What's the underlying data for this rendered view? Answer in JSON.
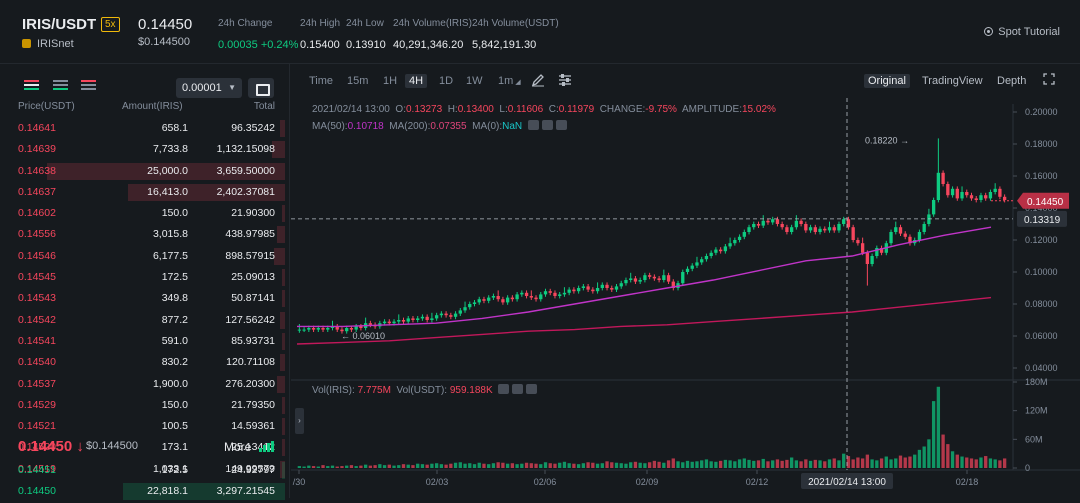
{
  "header": {
    "pair": "IRIS/USDT",
    "leverage": "5x",
    "name": "IRISnet",
    "last_price": "0.14450",
    "last_price_usd": "$0.144500",
    "stats": [
      {
        "label": "24h Change",
        "value": "0.00035 +0.24%",
        "color": "green"
      },
      {
        "label": "24h High",
        "value": "0.15400",
        "color": "default"
      },
      {
        "label": "24h Low",
        "value": "0.13910",
        "color": "default"
      },
      {
        "label": "24h Volume(IRIS)",
        "value": "40,291,346.20",
        "color": "default"
      },
      {
        "label": "24h Volume(USDT)",
        "value": "5,842,191.30",
        "color": "default"
      }
    ],
    "tutorial": "Spot Tutorial"
  },
  "orderbook": {
    "precision": "0.00001",
    "headers": {
      "price": "Price(USDT)",
      "amount": "Amount(IRIS)",
      "total": "Total"
    },
    "asks": [
      {
        "price": "0.14641",
        "amount": "658.1",
        "total": "96.35242",
        "depth": 0.02
      },
      {
        "price": "0.14639",
        "amount": "7,733.8",
        "total": "1,132.15098",
        "depth": 0.05
      },
      {
        "price": "0.14638",
        "amount": "25,000.0",
        "total": "3,659.50000",
        "depth": 0.88
      },
      {
        "price": "0.14637",
        "amount": "16,413.0",
        "total": "2,402.37081",
        "depth": 0.58
      },
      {
        "price": "0.14602",
        "amount": "150.0",
        "total": "21.90300",
        "depth": 0.01
      },
      {
        "price": "0.14556",
        "amount": "3,015.8",
        "total": "438.97985",
        "depth": 0.03
      },
      {
        "price": "0.14546",
        "amount": "6,177.5",
        "total": "898.57915",
        "depth": 0.04
      },
      {
        "price": "0.14545",
        "amount": "172.5",
        "total": "25.09013",
        "depth": 0.01
      },
      {
        "price": "0.14543",
        "amount": "349.8",
        "total": "50.87141",
        "depth": 0.01
      },
      {
        "price": "0.14542",
        "amount": "877.2",
        "total": "127.56242",
        "depth": 0.02
      },
      {
        "price": "0.14541",
        "amount": "591.0",
        "total": "85.93731",
        "depth": 0.01
      },
      {
        "price": "0.14540",
        "amount": "830.2",
        "total": "120.71108",
        "depth": 0.02
      },
      {
        "price": "0.14537",
        "amount": "1,900.0",
        "total": "276.20300",
        "depth": 0.03
      },
      {
        "price": "0.14529",
        "amount": "150.0",
        "total": "21.79350",
        "depth": 0.01
      },
      {
        "price": "0.14521",
        "amount": "100.5",
        "total": "14.59361",
        "depth": 0.01
      },
      {
        "price": "0.14520",
        "amount": "173.1",
        "total": "25.13412",
        "depth": 0.01
      },
      {
        "price": "0.14519",
        "amount": "1,033.1",
        "total": "149.99579",
        "depth": 0.02
      }
    ],
    "mid_price": "0.14450 ↓",
    "mid_price_usd": "$0.144500",
    "more_label": "More",
    "bids": [
      {
        "price": "0.14451",
        "amount": "172.5",
        "total": "24.92797",
        "depth": 0.01
      },
      {
        "price": "0.14450",
        "amount": "22,818.1",
        "total": "3,297.21545",
        "depth": 0.6
      }
    ]
  },
  "toolbar": {
    "timeframes": [
      "Time",
      "15m",
      "1H",
      "4H",
      "1D",
      "1W",
      "1m"
    ],
    "active_timeframe": "4H",
    "views": [
      "Original",
      "TradingView",
      "Depth"
    ],
    "active_view": "Original"
  },
  "ohlc": {
    "date": "2021/02/14 13:00",
    "o_label": "O:",
    "o": "0.13273",
    "h_label": "H:",
    "h": "0.13400",
    "l_label": "L:",
    "l": "0.11606",
    "c_label": "C:",
    "c": "0.11979",
    "change_label": "CHANGE:",
    "change": "-9.75%",
    "amp_label": "AMPLITUDE:",
    "amplitude": "15.02%",
    "ma50_label": "MA(50):",
    "ma50": "0.10718",
    "ma200_label": "MA(200):",
    "ma200": "0.07355",
    "ma0_label": "MA(0):",
    "ma0": "NaN"
  },
  "volume_legend": {
    "vol_iris_label": "Vol(IRIS):",
    "vol_iris": "7.775M",
    "vol_usdt_label": "Vol(USDT):",
    "vol_usdt": "959.188K"
  },
  "chart_data": {
    "type": "candlestick",
    "price_axis_ticks": [
      "0.20000",
      "0.18000",
      "0.16000",
      "0.14000",
      "0.12000",
      "0.10000",
      "0.08000",
      "0.06000",
      "0.04000"
    ],
    "price_ylim": [
      0.035,
      0.205
    ],
    "volume_axis_ticks": [
      "180M",
      "120M",
      "60M",
      "0"
    ],
    "volume_ylim": [
      0,
      180
    ],
    "x_ticks": [
      "/30",
      "02/03",
      "02/06",
      "02/09",
      "02/12",
      "2021/02/14 13:00",
      "02/18"
    ],
    "current_price_label": "0.14450",
    "crosshair_price_label": "0.13319",
    "annotations": [
      {
        "text": "0.18220 →"
      },
      {
        "text": "← 0.06010"
      }
    ],
    "series": [
      {
        "name": "MA(50)",
        "color": "#c034c8",
        "values": [
          0.066,
          0.066,
          0.067,
          0.068,
          0.071,
          0.075,
          0.08,
          0.085,
          0.09,
          0.095,
          0.101,
          0.107,
          0.11,
          0.117,
          0.123,
          0.128
        ]
      },
      {
        "name": "MA(200)",
        "color": "#c2185b",
        "values": [
          0.055,
          0.056,
          0.057,
          0.059,
          0.061,
          0.063,
          0.064,
          0.066,
          0.067,
          0.069,
          0.071,
          0.073,
          0.075,
          0.078,
          0.081,
          0.084
        ]
      }
    ],
    "candle_closes": [
      0.064,
      0.064,
      0.065,
      0.064,
      0.065,
      0.064,
      0.065,
      0.066,
      0.064,
      0.063,
      0.065,
      0.064,
      0.066,
      0.065,
      0.068,
      0.067,
      0.066,
      0.068,
      0.069,
      0.068,
      0.069,
      0.07,
      0.069,
      0.071,
      0.07,
      0.071,
      0.072,
      0.07,
      0.071,
      0.073,
      0.074,
      0.073,
      0.072,
      0.074,
      0.076,
      0.078,
      0.08,
      0.081,
      0.083,
      0.082,
      0.084,
      0.085,
      0.083,
      0.081,
      0.084,
      0.083,
      0.086,
      0.087,
      0.085,
      0.084,
      0.083,
      0.086,
      0.088,
      0.087,
      0.085,
      0.086,
      0.087,
      0.089,
      0.088,
      0.09,
      0.091,
      0.089,
      0.088,
      0.09,
      0.092,
      0.09,
      0.089,
      0.091,
      0.093,
      0.095,
      0.096,
      0.094,
      0.095,
      0.098,
      0.097,
      0.096,
      0.095,
      0.098,
      0.094,
      0.09,
      0.093,
      0.1,
      0.102,
      0.104,
      0.106,
      0.108,
      0.11,
      0.112,
      0.114,
      0.113,
      0.116,
      0.118,
      0.12,
      0.122,
      0.125,
      0.128,
      0.13,
      0.129,
      0.132,
      0.131,
      0.133,
      0.13,
      0.128,
      0.125,
      0.128,
      0.132,
      0.13,
      0.126,
      0.128,
      0.125,
      0.127,
      0.126,
      0.128,
      0.126,
      0.13,
      0.133,
      0.128,
      0.12,
      0.118,
      0.112,
      0.105,
      0.11,
      0.115,
      0.112,
      0.118,
      0.125,
      0.128,
      0.124,
      0.122,
      0.118,
      0.12,
      0.125,
      0.13,
      0.136,
      0.145,
      0.162,
      0.155,
      0.148,
      0.152,
      0.146,
      0.15,
      0.148,
      0.146,
      0.145,
      0.148,
      0.146,
      0.15,
      0.152,
      0.147,
      0.145
    ],
    "volumes": [
      4,
      3,
      5,
      4,
      3,
      6,
      4,
      5,
      3,
      4,
      5,
      6,
      4,
      5,
      7,
      5,
      6,
      8,
      6,
      7,
      5,
      6,
      8,
      7,
      6,
      9,
      8,
      7,
      9,
      10,
      8,
      7,
      9,
      11,
      12,
      9,
      10,
      8,
      11,
      9,
      8,
      10,
      12,
      11,
      9,
      10,
      8,
      9,
      11,
      10,
      9,
      8,
      12,
      10,
      9,
      11,
      13,
      10,
      9,
      8,
      10,
      12,
      11,
      9,
      10,
      14,
      12,
      11,
      10,
      9,
      12,
      13,
      11,
      10,
      12,
      15,
      13,
      11,
      16,
      20,
      14,
      12,
      15,
      13,
      14,
      16,
      18,
      14,
      13,
      15,
      17,
      16,
      14,
      18,
      20,
      17,
      15,
      16,
      19,
      14,
      16,
      18,
      15,
      17,
      22,
      16,
      14,
      18,
      15,
      17,
      16,
      14,
      18,
      20,
      16,
      30,
      25,
      18,
      22,
      20,
      28,
      18,
      16,
      20,
      24,
      18,
      20,
      26,
      22,
      24,
      28,
      38,
      45,
      60,
      140,
      170,
      70,
      50,
      35,
      28,
      24,
      22,
      20,
      18,
      22,
      25,
      20,
      18,
      16,
      20,
      18,
      22
    ]
  }
}
